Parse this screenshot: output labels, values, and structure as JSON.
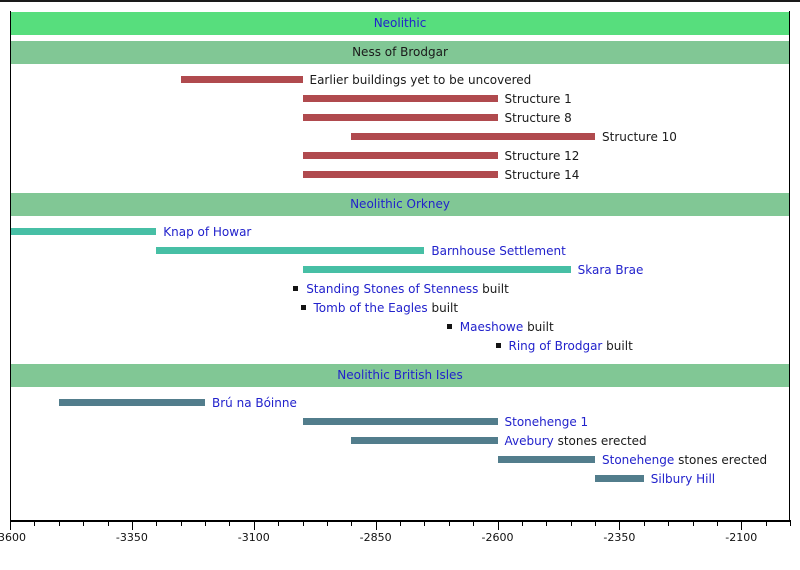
{
  "colors": {
    "period_green": "#57DE7D",
    "section_green": "#81C795",
    "red": "#B04A4E",
    "teal": "#47BFA5",
    "slate": "#527D8C",
    "link_blue": "#2222CC",
    "text_black": "#1a1a1a",
    "marker_black": "#141414",
    "axis_black": "#000000"
  },
  "chart_data": {
    "type": "timeline",
    "title": "",
    "axis": {
      "min": -3600,
      "max": -2000,
      "major_tick_step": 250,
      "minor_tick_step": 50,
      "tick_labels": [
        "-3600",
        "-3350",
        "-3100",
        "-2850",
        "-2600",
        "-2350",
        "-2100"
      ]
    },
    "rows": [
      {
        "kind": "header",
        "style": "period",
        "segments": [
          {
            "text": "Neolithic",
            "link": true
          }
        ]
      },
      {
        "kind": "header",
        "style": "section",
        "segments": [
          {
            "text": "Ness of Brodgar",
            "link": false
          }
        ]
      },
      {
        "kind": "bar",
        "color": "red",
        "from": -3250,
        "till": -3000,
        "segments": [
          {
            "text": "Earlier buildings yet to be uncovered",
            "link": false
          }
        ]
      },
      {
        "kind": "bar",
        "color": "red",
        "from": -3000,
        "till": -2600,
        "segments": [
          {
            "text": "Structure 1",
            "link": false
          }
        ]
      },
      {
        "kind": "bar",
        "color": "red",
        "from": -3000,
        "till": -2600,
        "segments": [
          {
            "text": "Structure 8",
            "link": false
          }
        ]
      },
      {
        "kind": "bar",
        "color": "red",
        "from": -2900,
        "till": -2400,
        "segments": [
          {
            "text": "Structure 10",
            "link": false
          }
        ]
      },
      {
        "kind": "bar",
        "color": "red",
        "from": -3000,
        "till": -2600,
        "segments": [
          {
            "text": "Structure 12",
            "link": false
          }
        ]
      },
      {
        "kind": "bar",
        "color": "red",
        "from": -3000,
        "till": -2600,
        "segments": [
          {
            "text": "Structure 14",
            "link": false
          }
        ]
      },
      {
        "kind": "header",
        "style": "section",
        "segments": [
          {
            "text": "Neolithic Orkney",
            "link": true
          }
        ]
      },
      {
        "kind": "bar",
        "color": "teal",
        "from": -3600,
        "till": -3300,
        "segments": [
          {
            "text": "Knap of Howar",
            "link": true
          }
        ]
      },
      {
        "kind": "bar",
        "color": "teal",
        "from": -3300,
        "till": -2750,
        "segments": [
          {
            "text": "Barnhouse Settlement",
            "link": true
          }
        ]
      },
      {
        "kind": "bar",
        "color": "teal",
        "from": -3000,
        "till": -2450,
        "segments": [
          {
            "text": "Skara Brae",
            "link": true
          }
        ]
      },
      {
        "kind": "event",
        "at": -3015,
        "segments": [
          {
            "text": "Standing Stones of Stenness",
            "link": true
          },
          {
            "text": " built",
            "link": false
          }
        ]
      },
      {
        "kind": "event",
        "at": -3000,
        "segments": [
          {
            "text": "Tomb of the Eagles",
            "link": true
          },
          {
            "text": " built",
            "link": false
          }
        ]
      },
      {
        "kind": "event",
        "at": -2700,
        "segments": [
          {
            "text": "Maeshowe",
            "link": true
          },
          {
            "text": " built",
            "link": false
          }
        ]
      },
      {
        "kind": "event",
        "at": -2600,
        "segments": [
          {
            "text": "Ring of Brodgar",
            "link": true
          },
          {
            "text": " built",
            "link": false
          }
        ]
      },
      {
        "kind": "header",
        "style": "section",
        "segments": [
          {
            "text": "Neolithic British Isles",
            "link": true
          }
        ]
      },
      {
        "kind": "bar",
        "color": "slate",
        "from": -3500,
        "till": -3200,
        "segments": [
          {
            "text": "Brú na Bóinne",
            "link": true
          }
        ]
      },
      {
        "kind": "bar",
        "color": "slate",
        "from": -3000,
        "till": -2600,
        "segments": [
          {
            "text": "Stonehenge 1",
            "link": true
          }
        ]
      },
      {
        "kind": "bar",
        "color": "slate",
        "from": -2900,
        "till": -2600,
        "segments": [
          {
            "text": "Avebury",
            "link": true
          },
          {
            "text": " stones erected",
            "link": false
          }
        ]
      },
      {
        "kind": "bar",
        "color": "slate",
        "from": -2600,
        "till": -2400,
        "segments": [
          {
            "text": "Stonehenge",
            "link": true
          },
          {
            "text": " stones erected",
            "link": false
          }
        ]
      },
      {
        "kind": "bar",
        "color": "slate",
        "from": -2400,
        "till": -2300,
        "segments": [
          {
            "text": "Silbury Hill",
            "link": true
          }
        ]
      }
    ]
  }
}
